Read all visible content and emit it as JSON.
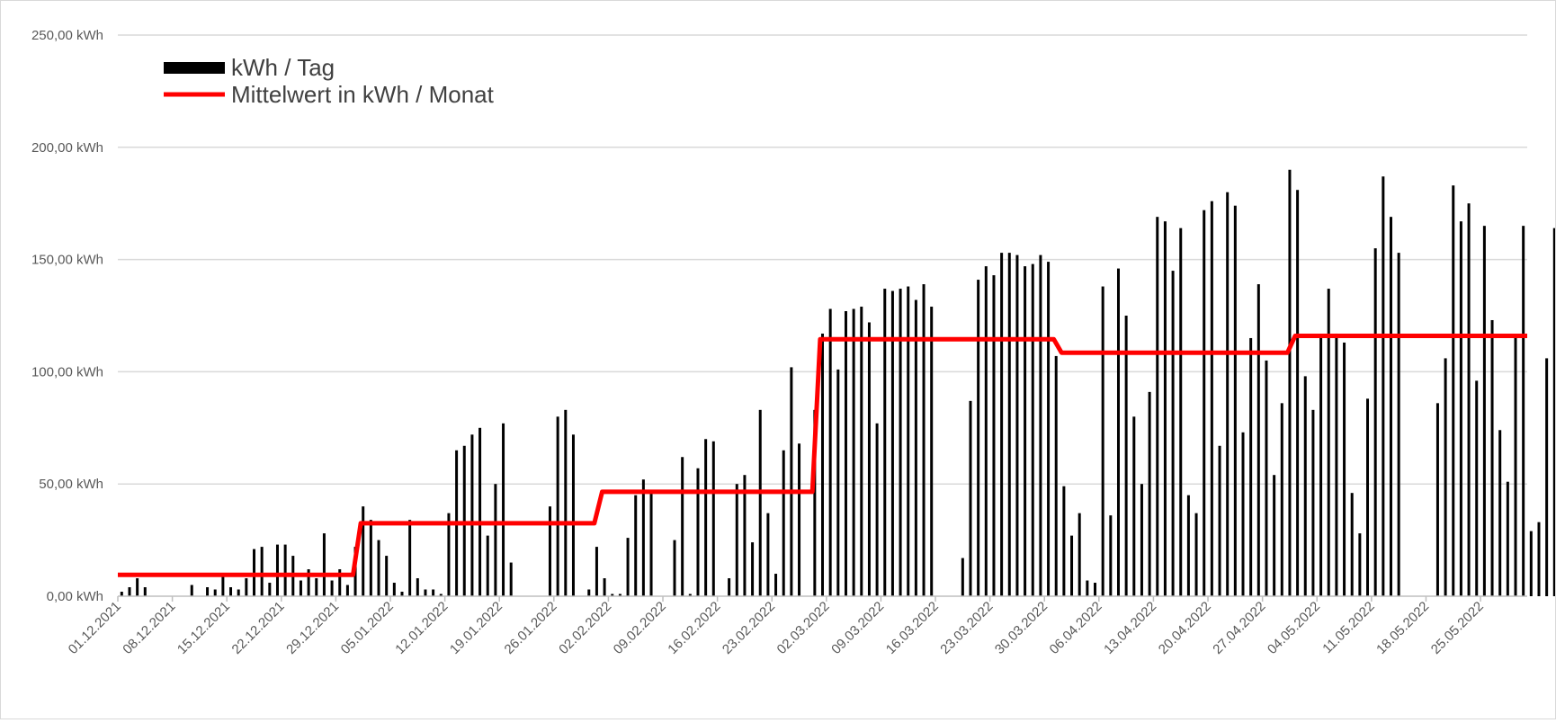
{
  "chart_data": {
    "type": "bar",
    "title": "",
    "xlabel": "",
    "ylabel": "",
    "ylim": [
      0,
      250
    ],
    "grid": true,
    "legend_position": "top-left",
    "y_ticks": [
      "0,00 kWh",
      "50,00 kWh",
      "100,00 kWh",
      "150,00 kWh",
      "200,00 kWh",
      "250,00 kWh"
    ],
    "y_tick_values": [
      0,
      50,
      100,
      150,
      200,
      250
    ],
    "x_ticks": [
      "01.12.2021",
      "08.12.2021",
      "15.12.2021",
      "22.12.2021",
      "29.12.2021",
      "05.01.2022",
      "12.01.2022",
      "19.01.2022",
      "26.01.2022",
      "02.02.2022",
      "09.02.2022",
      "16.02.2022",
      "23.02.2022",
      "02.03.2022",
      "09.03.2022",
      "16.03.2022",
      "23.03.2022",
      "30.03.2022",
      "06.04.2022",
      "13.04.2022",
      "20.04.2022",
      "27.04.2022",
      "04.05.2022",
      "11.05.2022",
      "18.05.2022",
      "25.05.2022"
    ],
    "x_range": [
      "01.12.2021",
      "31.05.2022"
    ],
    "colors": {
      "bars": "#000000",
      "mean": "#ff0000",
      "grid": "#d9d9d9",
      "axis": "#bfbfbf"
    },
    "series": [
      {
        "name": "kWh / Tag",
        "kind": "bar",
        "start_date": "01.12.2021",
        "values": [
          2,
          4,
          8,
          4,
          0,
          0,
          0,
          0,
          0,
          5,
          0,
          4,
          3,
          10,
          4,
          3,
          8,
          21,
          22,
          6,
          23,
          23,
          18,
          7,
          12,
          8,
          28,
          7,
          12,
          5,
          22,
          40,
          34,
          25,
          18,
          6,
          2,
          34,
          8,
          3,
          3,
          1,
          37,
          65,
          67,
          72,
          75,
          27,
          50,
          77,
          15,
          0,
          0,
          0,
          0,
          40,
          80,
          83,
          72,
          0,
          3,
          22,
          8,
          1,
          1,
          26,
          45,
          52,
          46,
          0,
          0,
          25,
          62,
          1,
          57,
          70,
          69,
          0,
          8,
          50,
          54,
          24,
          83,
          37,
          10,
          65,
          102,
          68,
          0,
          83,
          117,
          128,
          101,
          127,
          128,
          129,
          122,
          77,
          137,
          136,
          137,
          138,
          132,
          139,
          129,
          0,
          0,
          0,
          17,
          87,
          141,
          147,
          143,
          153,
          153,
          152,
          147,
          148,
          152,
          149,
          107,
          49,
          27,
          37,
          7,
          6,
          138,
          36,
          146,
          125,
          80,
          50,
          91,
          169,
          167,
          145,
          164,
          45,
          37,
          172,
          176,
          67,
          180,
          174,
          73,
          115,
          139,
          105,
          54,
          86,
          190,
          181,
          98,
          83,
          116,
          137,
          117,
          113,
          46,
          28,
          88,
          155,
          187,
          169,
          153,
          0,
          0,
          0,
          0,
          86,
          106,
          183,
          167,
          175,
          96,
          165,
          123,
          74,
          51,
          116,
          165,
          29,
          33,
          106,
          164
        ]
      },
      {
        "name": "Mittelwert in kWh / Monat",
        "kind": "step-line",
        "months": [
          "12.2021",
          "01.2022",
          "02.2022",
          "03.2022",
          "04.2022",
          "05.2022"
        ],
        "values": [
          9.5,
          32.5,
          46.5,
          114.5,
          108.5,
          116
        ]
      }
    ]
  }
}
